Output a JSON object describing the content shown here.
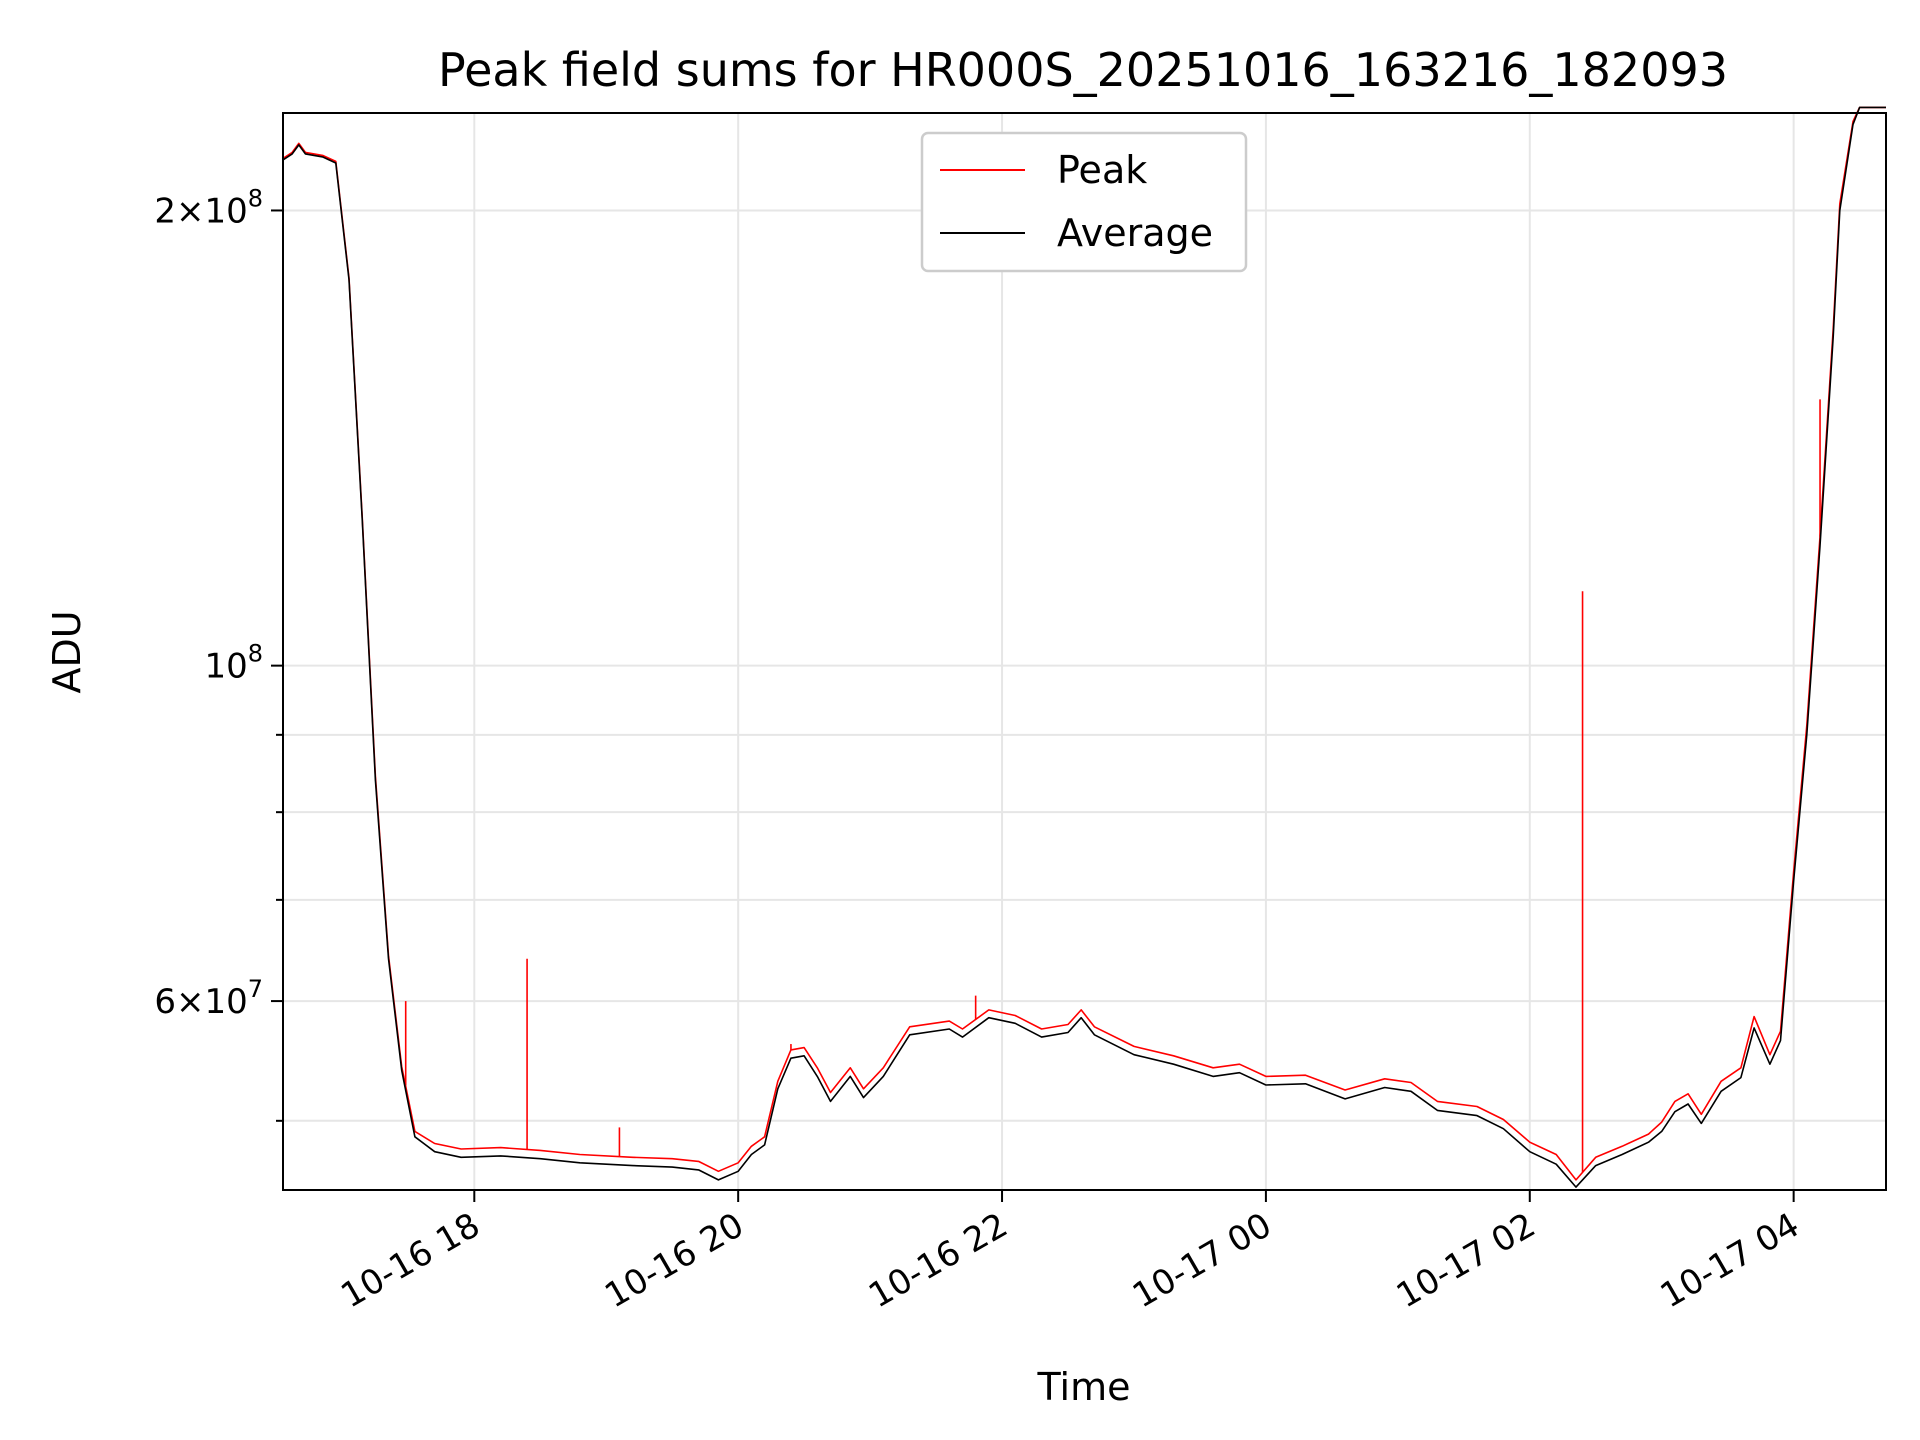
{
  "chart_data": {
    "type": "line",
    "title": "Peak field sums for HR000S_20251016_163216_182093",
    "xlabel": "Time",
    "ylabel": "ADU",
    "yscale": "log",
    "xlim_hours": [
      16.55,
      28.7
    ],
    "ylim": [
      45000000,
      232000000
    ],
    "grid": true,
    "legend_position": "upper-center",
    "x_ticks": [
      {
        "hour": 18,
        "label": "10-16 18"
      },
      {
        "hour": 20,
        "label": "10-16 20"
      },
      {
        "hour": 22,
        "label": "10-16 22"
      },
      {
        "hour": 24,
        "label": "10-17 00"
      },
      {
        "hour": 26,
        "label": "10-17 02"
      },
      {
        "hour": 28,
        "label": "10-17 04"
      }
    ],
    "y_major_ticks": [
      {
        "value": 60000000,
        "mantissa": "6",
        "exponent": "7"
      },
      {
        "value": 100000000,
        "mantissa": "",
        "exponent": "8"
      },
      {
        "value": 200000000,
        "mantissa": "2",
        "exponent": "8"
      }
    ],
    "y_minor_ticks": [
      50000000,
      70000000,
      80000000,
      90000000
    ],
    "series": [
      {
        "name": "Average",
        "color": "#000000",
        "points": [
          [
            16.55,
            216000000
          ],
          [
            16.62,
            218000000
          ],
          [
            16.67,
            221000000
          ],
          [
            16.72,
            218000000
          ],
          [
            16.85,
            217000000
          ],
          [
            16.95,
            215000000
          ],
          [
            17.05,
            180000000
          ],
          [
            17.15,
            125000000
          ],
          [
            17.25,
            84000000
          ],
          [
            17.35,
            64000000
          ],
          [
            17.45,
            54000000
          ],
          [
            17.55,
            48800000
          ],
          [
            17.7,
            47700000
          ],
          [
            17.9,
            47300000
          ],
          [
            18.2,
            47400000
          ],
          [
            18.5,
            47200000
          ],
          [
            18.8,
            46900000
          ],
          [
            19.2,
            46700000
          ],
          [
            19.5,
            46600000
          ],
          [
            19.7,
            46400000
          ],
          [
            19.85,
            45700000
          ],
          [
            20.0,
            46300000
          ],
          [
            20.1,
            47500000
          ],
          [
            20.2,
            48200000
          ],
          [
            20.3,
            52500000
          ],
          [
            20.4,
            55000000
          ],
          [
            20.5,
            55200000
          ],
          [
            20.6,
            53500000
          ],
          [
            20.7,
            51500000
          ],
          [
            20.85,
            53500000
          ],
          [
            20.95,
            51800000
          ],
          [
            21.1,
            53500000
          ],
          [
            21.3,
            57000000
          ],
          [
            21.6,
            57500000
          ],
          [
            21.7,
            56800000
          ],
          [
            21.9,
            58500000
          ],
          [
            22.1,
            58000000
          ],
          [
            22.3,
            56800000
          ],
          [
            22.5,
            57200000
          ],
          [
            22.6,
            58500000
          ],
          [
            22.7,
            57000000
          ],
          [
            23.0,
            55300000
          ],
          [
            23.3,
            54500000
          ],
          [
            23.6,
            53500000
          ],
          [
            23.8,
            53800000
          ],
          [
            24.0,
            52800000
          ],
          [
            24.3,
            52900000
          ],
          [
            24.6,
            51700000
          ],
          [
            24.9,
            52600000
          ],
          [
            25.1,
            52300000
          ],
          [
            25.3,
            50800000
          ],
          [
            25.6,
            50400000
          ],
          [
            25.8,
            49400000
          ],
          [
            26.0,
            47700000
          ],
          [
            26.2,
            46800000
          ],
          [
            26.35,
            45200000
          ],
          [
            26.5,
            46700000
          ],
          [
            26.7,
            47500000
          ],
          [
            26.9,
            48400000
          ],
          [
            27.0,
            49200000
          ],
          [
            27.1,
            50700000
          ],
          [
            27.2,
            51300000
          ],
          [
            27.3,
            49800000
          ],
          [
            27.45,
            52300000
          ],
          [
            27.6,
            53400000
          ],
          [
            27.7,
            57600000
          ],
          [
            27.82,
            54500000
          ],
          [
            27.9,
            56500000
          ],
          [
            28.0,
            72000000
          ],
          [
            28.1,
            90000000
          ],
          [
            28.2,
            120000000
          ],
          [
            28.3,
            165000000
          ],
          [
            28.35,
            200000000
          ],
          [
            28.45,
            228000000
          ],
          [
            28.5,
            234000000
          ],
          [
            28.7,
            234000000
          ]
        ]
      },
      {
        "name": "Peak",
        "color": "#ff0000",
        "points": [
          [
            16.55,
            216500000
          ],
          [
            16.62,
            218500000
          ],
          [
            16.67,
            221500000
          ],
          [
            16.72,
            218500000
          ],
          [
            16.85,
            217500000
          ],
          [
            16.95,
            215500000
          ],
          [
            17.05,
            180500000
          ],
          [
            17.15,
            125500000
          ],
          [
            17.25,
            84500000
          ],
          [
            17.35,
            64300000
          ],
          [
            17.45,
            54300000
          ],
          [
            17.55,
            49200000
          ],
          [
            17.7,
            48300000
          ],
          [
            17.9,
            47900000
          ],
          [
            18.2,
            48000000
          ],
          [
            18.5,
            47800000
          ],
          [
            18.8,
            47500000
          ],
          [
            19.2,
            47300000
          ],
          [
            19.5,
            47200000
          ],
          [
            19.7,
            47000000
          ],
          [
            19.85,
            46300000
          ],
          [
            20.0,
            46900000
          ],
          [
            20.1,
            48100000
          ],
          [
            20.2,
            48800000
          ],
          [
            20.3,
            53100000
          ],
          [
            20.4,
            55700000
          ],
          [
            20.5,
            55900000
          ],
          [
            20.6,
            54200000
          ],
          [
            20.7,
            52200000
          ],
          [
            20.85,
            54200000
          ],
          [
            20.95,
            52500000
          ],
          [
            21.1,
            54200000
          ],
          [
            21.3,
            57700000
          ],
          [
            21.6,
            58200000
          ],
          [
            21.7,
            57500000
          ],
          [
            21.9,
            59200000
          ],
          [
            22.1,
            58700000
          ],
          [
            22.3,
            57500000
          ],
          [
            22.5,
            57900000
          ],
          [
            22.6,
            59200000
          ],
          [
            22.7,
            57700000
          ],
          [
            23.0,
            56000000
          ],
          [
            23.3,
            55200000
          ],
          [
            23.6,
            54200000
          ],
          [
            23.8,
            54500000
          ],
          [
            24.0,
            53500000
          ],
          [
            24.3,
            53600000
          ],
          [
            24.6,
            52400000
          ],
          [
            24.9,
            53300000
          ],
          [
            25.1,
            53000000
          ],
          [
            25.3,
            51500000
          ],
          [
            25.6,
            51100000
          ],
          [
            25.8,
            50100000
          ],
          [
            26.0,
            48400000
          ],
          [
            26.2,
            47500000
          ],
          [
            26.35,
            45700000
          ],
          [
            26.5,
            47300000
          ],
          [
            26.7,
            48100000
          ],
          [
            26.9,
            49000000
          ],
          [
            27.0,
            49900000
          ],
          [
            27.1,
            51500000
          ],
          [
            27.2,
            52100000
          ],
          [
            27.3,
            50500000
          ],
          [
            27.45,
            53100000
          ],
          [
            27.6,
            54200000
          ],
          [
            27.7,
            58600000
          ],
          [
            27.82,
            55300000
          ],
          [
            27.9,
            57300000
          ],
          [
            28.0,
            73000000
          ],
          [
            28.1,
            91300000
          ],
          [
            28.2,
            121700000
          ],
          [
            28.3,
            167000000
          ],
          [
            28.35,
            202000000
          ],
          [
            28.45,
            229000000
          ],
          [
            28.5,
            234000000
          ],
          [
            28.7,
            234000000
          ]
        ],
        "spikes": [
          [
            17.48,
            60000000
          ],
          [
            18.4,
            64000000
          ],
          [
            26.4,
            112000000
          ],
          [
            19.1,
            49500000
          ],
          [
            20.4,
            56200000
          ],
          [
            21.8,
            60500000
          ],
          [
            28.2,
            150000000
          ]
        ]
      }
    ]
  },
  "legend": {
    "items": [
      {
        "label": "Peak",
        "color": "#ff0000"
      },
      {
        "label": "Average",
        "color": "#000000"
      }
    ]
  }
}
